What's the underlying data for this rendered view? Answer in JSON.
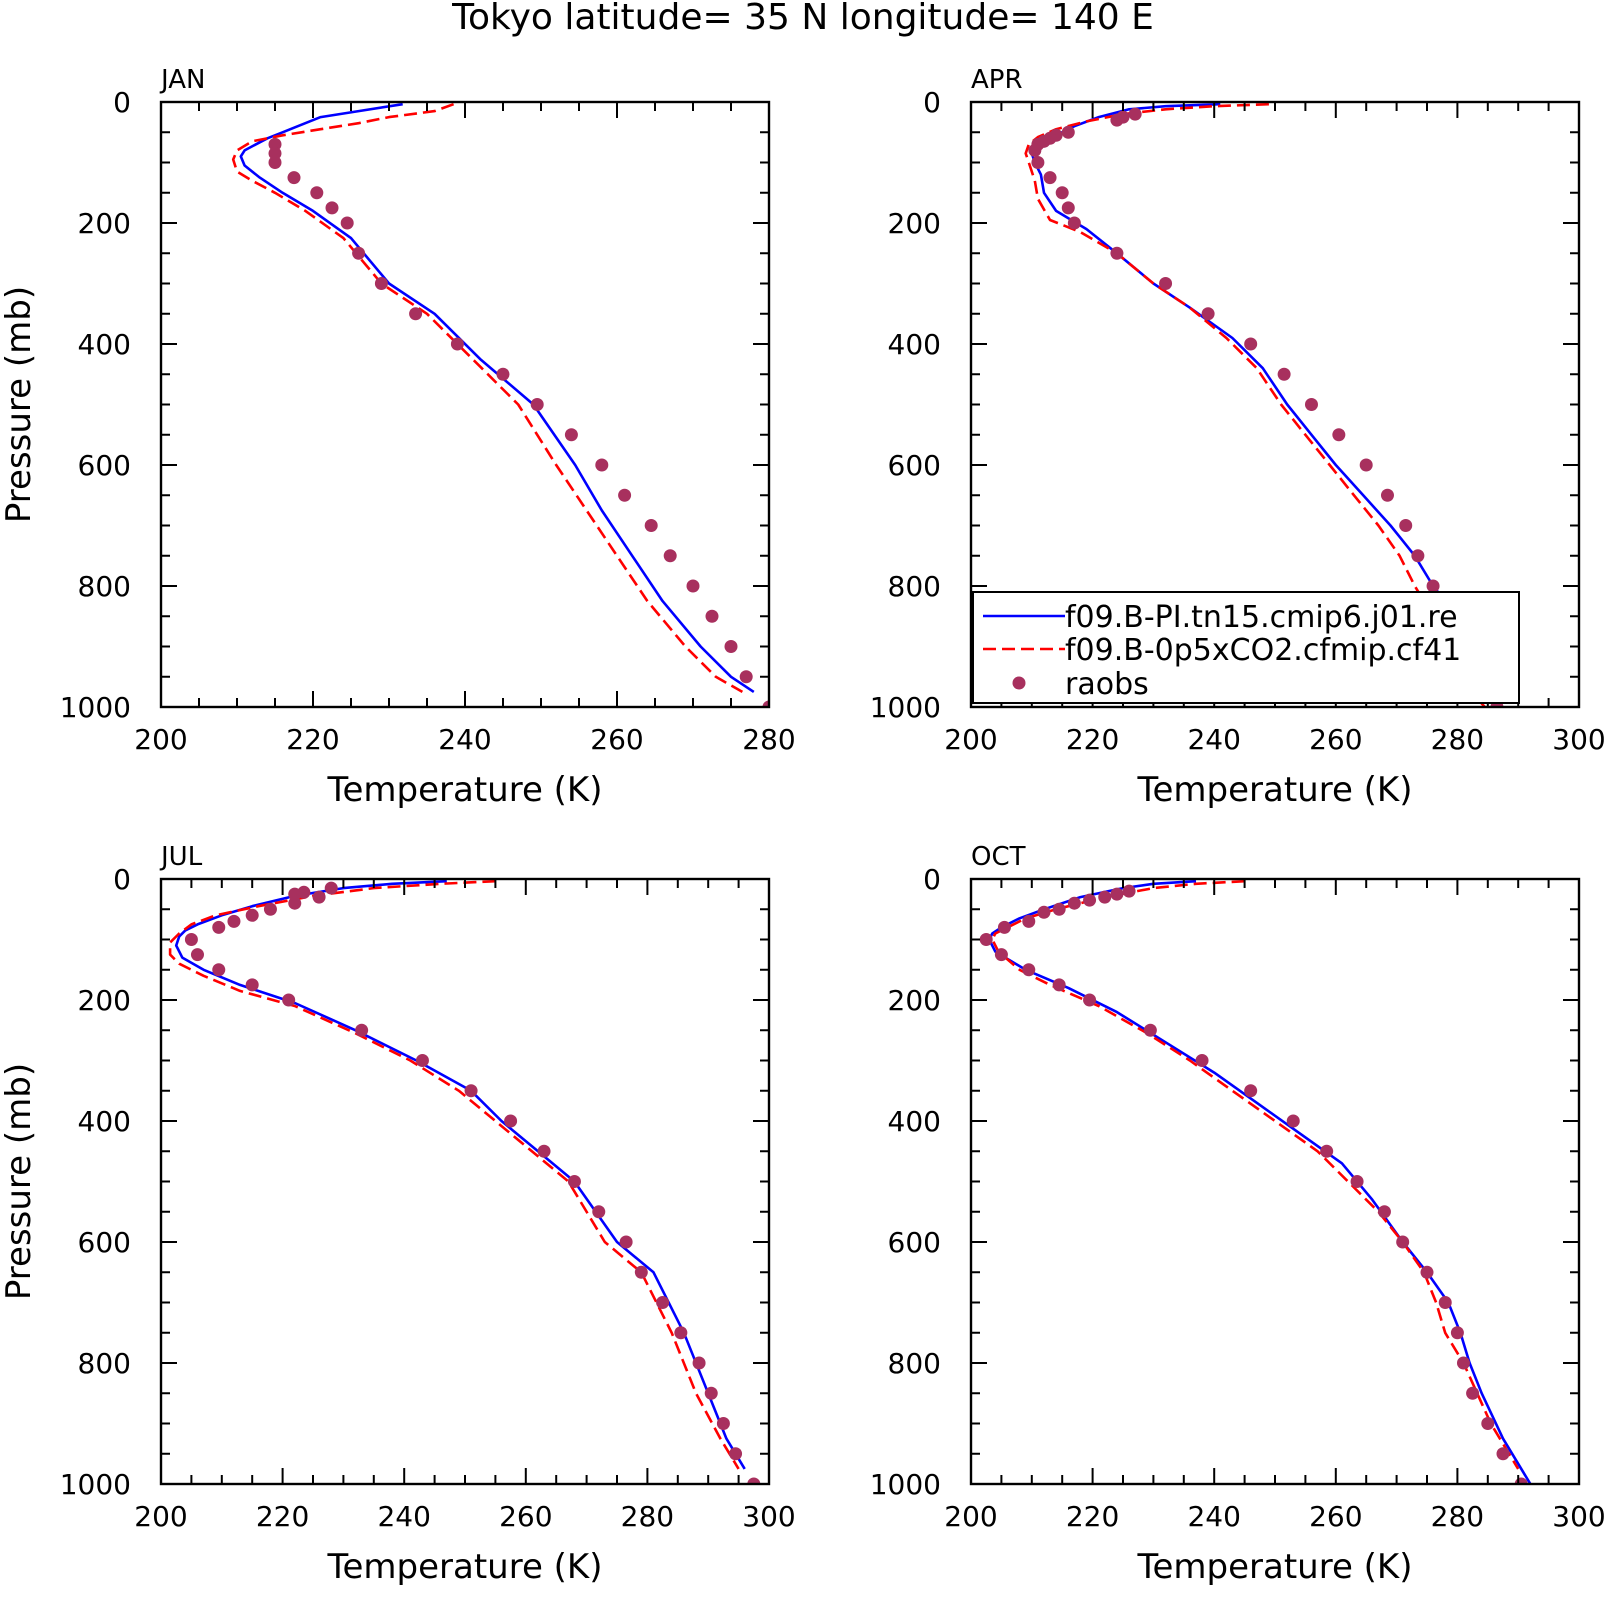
{
  "figure": {
    "title": "Tokyo  latitude= 35 N longitude= 140 E"
  },
  "colors": {
    "model_pi": "#0000ff",
    "model_0p5xco2": "#ff0000",
    "raobs": "#a8305e"
  },
  "chart_data": [
    {
      "type": "line",
      "panel_label": "JAN",
      "xlabel": "Temperature (K)",
      "ylabel": "Pressure (mb)",
      "xlim": [
        200,
        280
      ],
      "ylim": [
        1000,
        0
      ],
      "xticks": [
        200,
        220,
        240,
        260,
        280
      ],
      "yticks": [
        0,
        200,
        400,
        600,
        800,
        1000
      ],
      "y_inverted": true,
      "legend": null,
      "series": [
        {
          "role": "model_pi",
          "style": "solid",
          "x": [
            231.8,
            226,
            221,
            218,
            216,
            214,
            212.5,
            211,
            210.5,
            211,
            213,
            216,
            220,
            225,
            230,
            236,
            242,
            249,
            254.5,
            258,
            262,
            266,
            271,
            275,
            278
          ],
          "y": [
            3.6,
            15,
            25,
            40,
            50,
            60,
            70,
            80,
            90,
            105,
            125,
            150,
            180,
            225,
            300,
            350,
            425,
            500,
            600,
            675,
            750,
            825,
            900,
            950,
            975
          ]
        },
        {
          "role": "model_0p5xco2",
          "style": "dashed",
          "x": [
            238.5,
            236,
            230,
            226,
            221,
            216,
            212,
            210,
            209.5,
            210,
            212,
            215,
            219,
            224,
            229,
            235,
            241,
            247,
            252,
            256,
            260,
            264,
            269,
            273,
            276.5
          ],
          "y": [
            3.6,
            15,
            25,
            35,
            45,
            55,
            65,
            80,
            95,
            115,
            130,
            150,
            180,
            225,
            300,
            350,
            425,
            500,
            600,
            675,
            750,
            825,
            900,
            950,
            975
          ]
        },
        {
          "role": "raobs",
          "style": "markers",
          "x": [
            215,
            215,
            215,
            217.5,
            220.5,
            222.5,
            224.5,
            226,
            229,
            233.5,
            239,
            245,
            249.5,
            254,
            258,
            261,
            264.5,
            267,
            270,
            272.5,
            275,
            277,
            280
          ],
          "y": [
            70,
            85,
            100,
            125,
            150,
            175,
            200,
            250,
            300,
            350,
            400,
            450,
            500,
            550,
            600,
            650,
            700,
            750,
            800,
            850,
            900,
            950,
            1000
          ]
        }
      ]
    },
    {
      "type": "line",
      "panel_label": "APR",
      "xlabel": "Temperature (K)",
      "ylabel": "",
      "xlim": [
        200,
        300
      ],
      "ylim": [
        1000,
        0
      ],
      "xticks": [
        200,
        220,
        240,
        260,
        280,
        300
      ],
      "yticks": [
        0,
        200,
        400,
        600,
        800,
        1000
      ],
      "y_inverted": true,
      "legend": {
        "location": "lower-left",
        "entries": [
          "f09.B-PI.tn15.cmip6.j01.re",
          "f09.B-0p5xCO2.cfmip.cf41",
          "raobs"
        ]
      },
      "series": [
        {
          "role": "model_pi",
          "style": "solid",
          "x": [
            241,
            232,
            226,
            221,
            217,
            214,
            212,
            210.5,
            210,
            210.5,
            211.5,
            212,
            214,
            219,
            224,
            230,
            236,
            243,
            248,
            252,
            256,
            260,
            264.5,
            269,
            273,
            276,
            280,
            284,
            287
          ],
          "y": [
            3.6,
            7,
            12,
            25,
            40,
            55,
            65,
            75,
            85,
            100,
            120,
            150,
            180,
            210,
            250,
            300,
            340,
            390,
            440,
            500,
            550,
            600,
            650,
            700,
            750,
            800,
            850,
            950,
            1000
          ]
        },
        {
          "role": "model_0p5xco2",
          "style": "dashed",
          "x": [
            249,
            240,
            232,
            225,
            219,
            214,
            211,
            209.5,
            209,
            209.5,
            210.5,
            211,
            213,
            218,
            224,
            230,
            236,
            242,
            247,
            251,
            255,
            259,
            263,
            267,
            270.5,
            273,
            276,
            280,
            284.5
          ],
          "y": [
            3.6,
            7,
            12,
            20,
            32,
            45,
            58,
            70,
            85,
            100,
            130,
            160,
            195,
            215,
            250,
            300,
            340,
            390,
            440,
            500,
            550,
            600,
            650,
            700,
            750,
            800,
            850,
            950,
            1000
          ]
        },
        {
          "role": "raobs",
          "style": "markers",
          "x": [
            227,
            225,
            224,
            216,
            214,
            213,
            212,
            211,
            210.5,
            211,
            213,
            215,
            216,
            217,
            224,
            232,
            239,
            246,
            251.5,
            256,
            260.5,
            265,
            268.5,
            271.5,
            273.5,
            276,
            278,
            281,
            283.5,
            286.5
          ],
          "y": [
            20,
            25,
            30,
            50,
            55,
            60,
            65,
            70,
            80,
            100,
            125,
            150,
            175,
            200,
            250,
            300,
            350,
            400,
            450,
            500,
            550,
            600,
            650,
            700,
            750,
            800,
            850,
            900,
            950,
            1000
          ]
        }
      ]
    },
    {
      "type": "line",
      "panel_label": "JUL",
      "xlabel": "Temperature (K)",
      "ylabel": "Pressure (mb)",
      "xlim": [
        200,
        300
      ],
      "ylim": [
        1000,
        0
      ],
      "xticks": [
        200,
        220,
        240,
        260,
        280,
        300
      ],
      "yticks": [
        0,
        200,
        400,
        600,
        800,
        1000
      ],
      "y_inverted": true,
      "legend": null,
      "series": [
        {
          "role": "model_pi",
          "style": "solid",
          "x": [
            247,
            238,
            230,
            222,
            215,
            210,
            206,
            204,
            203,
            202.5,
            203.5,
            207,
            213,
            222,
            232,
            242,
            251,
            256,
            262,
            268,
            275,
            281,
            286,
            290,
            293,
            296
          ],
          "y": [
            3.6,
            8,
            15,
            28,
            45,
            60,
            75,
            85,
            95,
            110,
            130,
            150,
            175,
            205,
            250,
            300,
            350,
            400,
            450,
            500,
            600,
            650,
            750,
            850,
            925,
            975
          ]
        },
        {
          "role": "model_0p5xco2",
          "style": "dashed",
          "x": [
            255,
            246,
            235,
            225,
            216,
            209,
            205,
            203,
            201.5,
            201.5,
            203,
            207,
            213,
            222,
            232,
            241,
            249,
            255,
            261,
            267,
            273,
            279,
            284,
            288,
            292,
            295
          ],
          "y": [
            3.6,
            8,
            15,
            28,
            45,
            60,
            75,
            90,
            105,
            125,
            140,
            160,
            185,
            210,
            255,
            300,
            350,
            400,
            450,
            500,
            600,
            650,
            750,
            850,
            925,
            975
          ]
        },
        {
          "role": "raobs",
          "style": "markers",
          "x": [
            228,
            226,
            223.5,
            222,
            222,
            218,
            215,
            212,
            209.5,
            205,
            206,
            209.5,
            215,
            221,
            233,
            243,
            251,
            257.5,
            263,
            268,
            272,
            276.5,
            279,
            282.5,
            285.5,
            288.5,
            290.5,
            292.5,
            294.5,
            297.5
          ],
          "y": [
            15,
            30,
            22,
            25,
            40,
            50,
            60,
            70,
            80,
            100,
            125,
            150,
            175,
            200,
            250,
            300,
            350,
            400,
            450,
            500,
            550,
            600,
            650,
            700,
            750,
            800,
            850,
            900,
            950,
            1000
          ]
        }
      ]
    },
    {
      "type": "line",
      "panel_label": "OCT",
      "xlabel": "Temperature (K)",
      "ylabel": "",
      "xlim": [
        200,
        300
      ],
      "ylim": [
        1000,
        0
      ],
      "xticks": [
        200,
        220,
        240,
        260,
        280,
        300
      ],
      "yticks": [
        0,
        200,
        400,
        600,
        800,
        1000
      ],
      "y_inverted": true,
      "legend": null,
      "series": [
        {
          "role": "model_pi",
          "style": "solid",
          "x": [
            237,
            230,
            225,
            218,
            212,
            208,
            205,
            203.5,
            203,
            204,
            209,
            216,
            224,
            232,
            240,
            247,
            254,
            261,
            266,
            271,
            275,
            278.5,
            280.5,
            282,
            284,
            287.5,
            292
          ],
          "y": [
            3.6,
            8,
            15,
            30,
            50,
            65,
            80,
            90,
            100,
            120,
            150,
            180,
            220,
            270,
            320,
            370,
            420,
            470,
            530,
            600,
            650,
            700,
            750,
            800,
            850,
            925,
            1000
          ]
        },
        {
          "role": "model_0p5xco2",
          "style": "dashed",
          "x": [
            245,
            237,
            230,
            222,
            214,
            209,
            206,
            204,
            203.5,
            204.5,
            208,
            213,
            221,
            229,
            236,
            243,
            250,
            257,
            262,
            267,
            271,
            274.5,
            276.5,
            278,
            281,
            285.5,
            290
          ],
          "y": [
            3.6,
            8,
            15,
            30,
            50,
            65,
            80,
            90,
            100,
            120,
            150,
            175,
            210,
            255,
            300,
            350,
            400,
            450,
            500,
            550,
            600,
            650,
            700,
            750,
            800,
            900,
            975
          ]
        },
        {
          "role": "raobs",
          "style": "markers",
          "x": [
            226,
            224,
            222,
            219.5,
            217,
            214.5,
            212,
            209.5,
            205.5,
            202.5,
            205,
            209.5,
            214.5,
            219.5,
            229.5,
            238,
            246,
            253,
            258.5,
            263.5,
            268,
            271,
            275,
            278,
            280,
            281,
            282.5,
            285,
            287.5,
            290.5
          ],
          "y": [
            20,
            25,
            30,
            35,
            40,
            50,
            55,
            70,
            80,
            100,
            125,
            150,
            175,
            200,
            250,
            300,
            350,
            400,
            450,
            500,
            550,
            600,
            650,
            700,
            750,
            800,
            850,
            900,
            950,
            1000
          ]
        }
      ]
    }
  ]
}
